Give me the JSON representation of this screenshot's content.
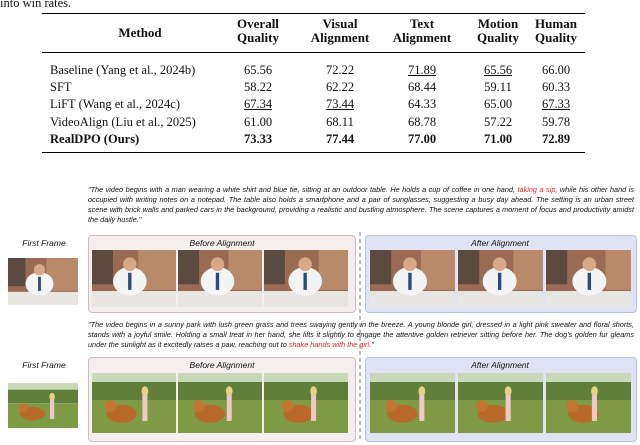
{
  "top_text": "into win rates.",
  "table": {
    "headers": [
      [
        "Method"
      ],
      [
        "Overall",
        "Quality"
      ],
      [
        "Visual",
        "Alignment"
      ],
      [
        "Text",
        "Alignment"
      ],
      [
        "Motion",
        "Quality"
      ],
      [
        "Human",
        "Quality"
      ]
    ],
    "rows": [
      {
        "method": "Baseline (Yang et al., 2024b)",
        "cells": [
          {
            "text": "65.56"
          },
          {
            "text": "72.22"
          },
          {
            "text": "71.89",
            "underline": true
          },
          {
            "text": "65.56",
            "underline": true
          },
          {
            "text": "66.00"
          }
        ]
      },
      {
        "method": "SFT",
        "cells": [
          {
            "text": "58.22"
          },
          {
            "text": "62.22"
          },
          {
            "text": "68.44"
          },
          {
            "text": "59.11"
          },
          {
            "text": "60.33"
          }
        ]
      },
      {
        "method": "LiFT (Wang et al., 2024c)",
        "cells": [
          {
            "text": "67.34",
            "underline": true
          },
          {
            "text": "73.44",
            "underline": true
          },
          {
            "text": "64.33"
          },
          {
            "text": "65.00"
          },
          {
            "text": "67.33",
            "underline": true
          }
        ]
      },
      {
        "method": "VideoAlign (Liu et al., 2025)",
        "cells": [
          {
            "text": "61.00"
          },
          {
            "text": "68.11"
          },
          {
            "text": "68.78"
          },
          {
            "text": "57.22"
          },
          {
            "text": "59.78"
          }
        ]
      },
      {
        "method": "RealDPO (Ours)",
        "bold": true,
        "cells": [
          {
            "text": "73.33"
          },
          {
            "text": "77.44"
          },
          {
            "text": "77.00"
          },
          {
            "text": "71.00"
          },
          {
            "text": "72.89"
          }
        ]
      }
    ]
  },
  "figure": {
    "examples": [
      {
        "caption": [
          {
            "text": "\"The video begins with a man wearing a white shirt and blue tie, sitting at an outdoor table. He holds a cup of coffee in one hand, "
          },
          {
            "text": "taking a sip",
            "highlight": true
          },
          {
            "text": ", while his other hand is occupied with writing notes on a notepad. The table also holds a smartphone and a pair of sunglasses, suggesting a busy day ahead. The setting is an urban street scene with brick walls and parked cars in the background, providing a realistic and bustling atmosphere. The scene captures a moment of focus and productivity amidst the daily hustle.\""
          }
        ],
        "first_frame": "First Frame",
        "before": "Before  Alignment",
        "after": "After  Alignment"
      },
      {
        "caption": [
          {
            "text": "\"The video begins in a sunny park with lush green grass and trees swaying gently in the breeze. A young blonde girl, dressed in a light pink sweater and floral shorts, stands with a joyful smile. Holding a small treat in her hand, she lifts it slightly to engage the attentive golden retriever sitting before her. The dog's golden fur gleams under the sunlight as it excitedly raises a paw, reaching out to "
          },
          {
            "text": "shake hands with the girl",
            "highlight": true
          },
          {
            "text": ".\""
          }
        ],
        "first_frame": "First Frame",
        "before": "Before  Alignment",
        "after": "After  Alignment"
      }
    ]
  }
}
